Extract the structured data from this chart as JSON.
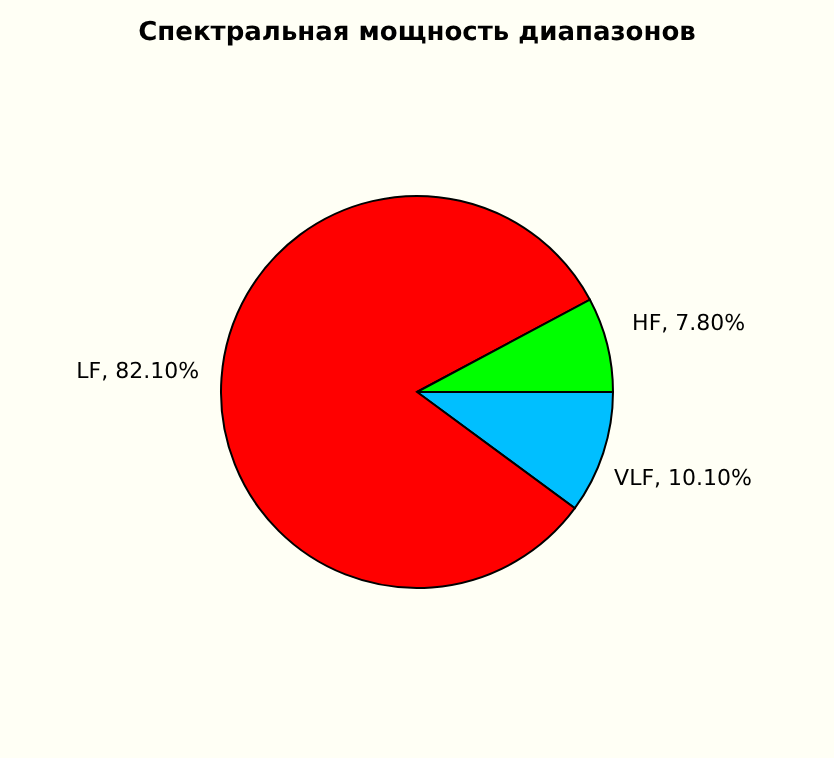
{
  "chart_data": {
    "type": "pie",
    "title": "Спектральная мощность диапазонов",
    "categories": [
      "VLF",
      "LF",
      "HF"
    ],
    "values": [
      10.1,
      82.1,
      7.8
    ],
    "colors": [
      "#00bfff",
      "#ff0000",
      "#00ff00"
    ],
    "value_labels": [
      "10.10%",
      "82.10%",
      "7.80%"
    ],
    "legend": false
  }
}
